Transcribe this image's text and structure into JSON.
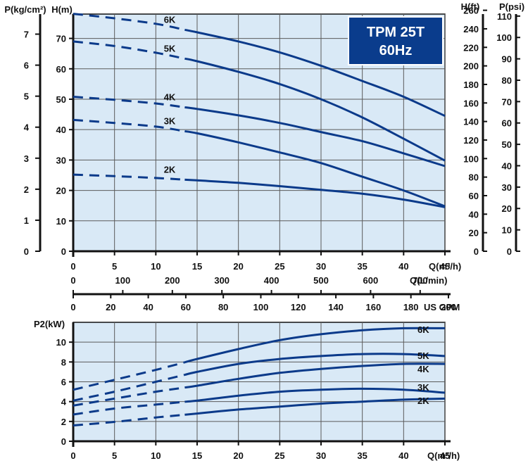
{
  "badge": {
    "model": "TPM 25T",
    "frequency": "60Hz",
    "bg_color": "#0a3c8c",
    "text_color": "#ffffff"
  },
  "colors": {
    "plot_bg": "#d9e9f6",
    "curve": "#0b3a8a",
    "grid": "#5a5a5a",
    "axis": "#111111"
  },
  "chart_data": [
    {
      "type": "line",
      "title": "",
      "grid": true,
      "x_unit": "Q(m³/h)",
      "x_range": [
        0,
        45
      ],
      "x_ticks": [
        0,
        5,
        10,
        15,
        20,
        25,
        30,
        35,
        40,
        45
      ],
      "x_tick_labels": [
        "0",
        "5",
        "10",
        "15",
        "20",
        "25",
        "30",
        "35",
        "40",
        "45"
      ],
      "y_unit": "H(m)",
      "y_range": [
        0,
        78
      ],
      "y_ticks": [
        0,
        10,
        20,
        30,
        40,
        50,
        60,
        70
      ],
      "y_tick_labels": [
        "0",
        "10",
        "20",
        "30",
        "40",
        "50",
        "60",
        "70"
      ],
      "dashed_until_x": 13.5,
      "secondary_axes": {
        "pressure": {
          "unit": "P(kg/cm²)",
          "ticks": [
            0,
            1,
            2,
            3,
            4,
            5,
            6,
            7
          ],
          "tick_labels": [
            "0",
            "1",
            "2",
            "3",
            "4",
            "5",
            "6",
            "7"
          ]
        },
        "head_ft": {
          "unit": "H(ft)",
          "ticks": [
            0,
            20,
            40,
            60,
            80,
            100,
            120,
            140,
            160,
            180,
            200,
            220,
            240,
            260
          ],
          "tick_labels": [
            "0",
            "20",
            "40",
            "60",
            "80",
            "100",
            "120",
            "140",
            "160",
            "180",
            "200",
            "220",
            "240",
            "260"
          ]
        },
        "pressure_psi": {
          "unit": "P(psi)",
          "ticks": [
            0,
            10,
            20,
            30,
            40,
            50,
            60,
            70,
            80,
            90,
            100,
            110
          ],
          "tick_labels": [
            "0",
            "10",
            "20",
            "30",
            "40",
            "50",
            "60",
            "70",
            "80",
            "90",
            "100",
            "110"
          ]
        },
        "flow_lmin": {
          "unit": "Q(L/min)",
          "ticks": [
            0,
            100,
            200,
            300,
            400,
            500,
            600,
            700
          ],
          "tick_labels": [
            "0",
            "100",
            "200",
            "300",
            "400",
            "500",
            "600",
            "700"
          ]
        },
        "flow_usgpm": {
          "unit": "US GPM",
          "ticks": [
            0,
            20,
            40,
            60,
            80,
            100,
            120,
            140,
            160,
            180,
            200
          ],
          "tick_labels": [
            "0",
            "20",
            "40",
            "60",
            "80",
            "100",
            "120",
            "140",
            "160",
            "180",
            "200"
          ]
        }
      },
      "series": [
        {
          "name": "6K",
          "x": [
            0,
            5,
            10,
            15,
            20,
            25,
            30,
            35,
            40,
            45
          ],
          "y": [
            78.1,
            76.6,
            74.8,
            72.0,
            69.0,
            65.4,
            61.0,
            56.0,
            50.8,
            44.5
          ]
        },
        {
          "name": "5K",
          "x": [
            0,
            5,
            10,
            15,
            20,
            25,
            30,
            35,
            40,
            45
          ],
          "y": [
            69.0,
            67.5,
            65.3,
            62.5,
            59.0,
            55.0,
            50.0,
            44.0,
            37.0,
            29.8
          ]
        },
        {
          "name": "4K",
          "x": [
            0,
            5,
            10,
            15,
            20,
            25,
            30,
            35,
            40,
            45
          ],
          "y": [
            50.8,
            49.8,
            48.6,
            46.8,
            44.7,
            42.2,
            39.2,
            36.2,
            32.2,
            28.0
          ]
        },
        {
          "name": "3K",
          "x": [
            0,
            5,
            10,
            15,
            20,
            25,
            30,
            35,
            40,
            45
          ],
          "y": [
            43.2,
            42.2,
            41.0,
            38.8,
            35.8,
            32.5,
            29.0,
            24.5,
            20.0,
            14.8
          ]
        },
        {
          "name": "2K",
          "x": [
            0,
            5,
            10,
            15,
            20,
            25,
            30,
            35,
            40,
            45
          ],
          "y": [
            25.2,
            24.7,
            24.1,
            23.3,
            22.5,
            21.4,
            20.2,
            18.9,
            17.0,
            14.5
          ]
        }
      ]
    },
    {
      "type": "line",
      "title": "",
      "grid": true,
      "x_unit": "Q(m³/h)",
      "x_range": [
        0,
        45
      ],
      "x_ticks": [
        0,
        5,
        10,
        15,
        20,
        25,
        30,
        35,
        40,
        45
      ],
      "x_tick_labels": [
        "0",
        "5",
        "10",
        "15",
        "20",
        "25",
        "30",
        "35",
        "40",
        "45"
      ],
      "y_unit": "P2(kW)",
      "y_range": [
        0,
        12
      ],
      "y_ticks": [
        0,
        2,
        4,
        6,
        8,
        10
      ],
      "y_tick_labels": [
        "0",
        "2",
        "4",
        "6",
        "8",
        "10"
      ],
      "dashed_until_x": 13.5,
      "series": [
        {
          "name": "6K",
          "x": [
            0,
            5,
            10,
            15,
            20,
            25,
            30,
            35,
            40,
            45
          ],
          "y": [
            5.2,
            6.2,
            7.2,
            8.3,
            9.3,
            10.2,
            10.8,
            11.2,
            11.4,
            11.4
          ]
        },
        {
          "name": "5K",
          "x": [
            0,
            5,
            10,
            15,
            20,
            25,
            30,
            35,
            40,
            45
          ],
          "y": [
            4.1,
            5.0,
            6.0,
            7.0,
            7.8,
            8.3,
            8.6,
            8.8,
            8.8,
            8.6
          ]
        },
        {
          "name": "4K",
          "x": [
            0,
            5,
            10,
            15,
            20,
            25,
            30,
            35,
            40,
            45
          ],
          "y": [
            3.6,
            4.3,
            5.0,
            5.6,
            6.3,
            6.9,
            7.3,
            7.6,
            7.8,
            7.8
          ]
        },
        {
          "name": "3K",
          "x": [
            0,
            5,
            10,
            15,
            20,
            25,
            30,
            35,
            40,
            45
          ],
          "y": [
            2.7,
            3.3,
            3.7,
            4.1,
            4.6,
            5.0,
            5.2,
            5.3,
            5.2,
            4.9
          ]
        },
        {
          "name": "2K",
          "x": [
            0,
            5,
            10,
            15,
            20,
            25,
            30,
            35,
            40,
            45
          ],
          "y": [
            1.6,
            1.95,
            2.4,
            2.8,
            3.2,
            3.5,
            3.8,
            4.0,
            4.2,
            4.3
          ]
        }
      ]
    }
  ]
}
